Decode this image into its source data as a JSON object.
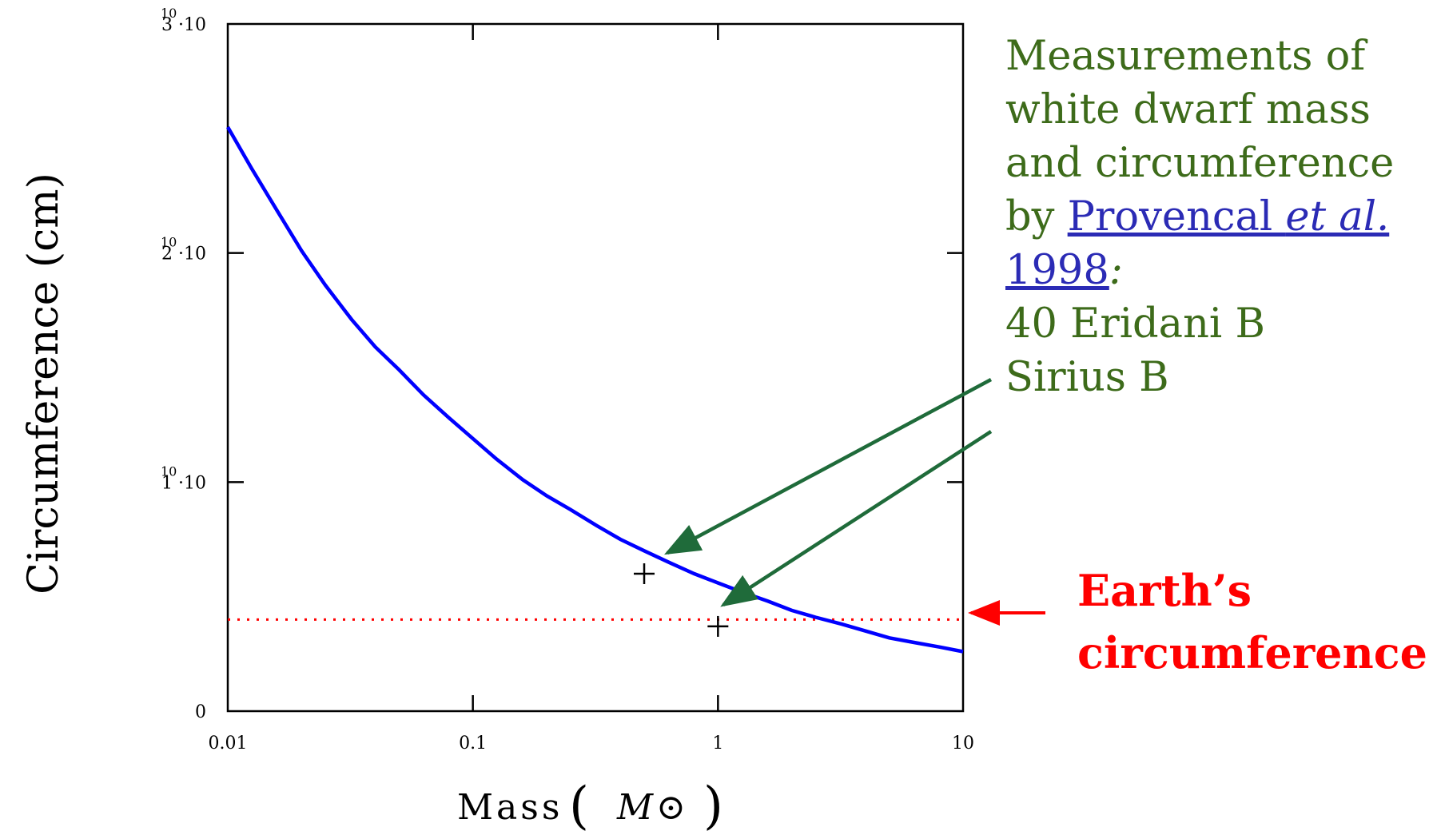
{
  "chart_data": {
    "type": "line",
    "xscale": "log",
    "xlim": [
      0.01,
      10
    ],
    "ylim": [
      0,
      30000000000
    ],
    "x_ticks": [
      {
        "value": 0.01,
        "label": "0.01"
      },
      {
        "value": 0.1,
        "label": "0.1"
      },
      {
        "value": 1,
        "label": "1"
      },
      {
        "value": 10,
        "label": "10"
      }
    ],
    "y_ticks": [
      {
        "value": 0,
        "mantissa": "0",
        "exponent": ""
      },
      {
        "value": 10000000000,
        "mantissa": "1 ·10",
        "exponent": "10"
      },
      {
        "value": 20000000000,
        "mantissa": "2 ·10",
        "exponent": "10"
      },
      {
        "value": 30000000000,
        "mantissa": "3 ·10",
        "exponent": "10"
      }
    ],
    "ylabel": "Circumference (cm)",
    "xlabel": {
      "word": "Mass",
      "unit": "M⊙"
    },
    "series": [
      {
        "x": [
          0.01,
          0.0125,
          0.016,
          0.02,
          0.025,
          0.032,
          0.04,
          0.05,
          0.063,
          0.08,
          0.1,
          0.125,
          0.16,
          0.2,
          0.25,
          0.32,
          0.4,
          0.5,
          0.63,
          0.8,
          1.0,
          1.25,
          1.6,
          2.0,
          2.5,
          3.2,
          4.0,
          5.0,
          6.3,
          8.0,
          10.0
        ],
        "y": [
          25500000000,
          23700000000,
          21800000000,
          20100000000,
          18600000000,
          17100000000,
          15900000000,
          14900000000,
          13800000000,
          12800000000,
          11900000000,
          11000000000,
          10100000000,
          9400000000,
          8800000000,
          8100000000,
          7500000000,
          7000000000,
          6500000000,
          6000000000,
          5600000000,
          5200000000,
          4800000000,
          4400000000,
          4100000000,
          3800000000,
          3500000000,
          3200000000,
          3000000000,
          2800000000,
          2600000000
        ],
        "color": "#0000ff"
      }
    ],
    "points": [
      {
        "x": 0.5,
        "y": 6000000000,
        "marker": "+",
        "color": "#000000"
      },
      {
        "x": 1.0,
        "y": 3700000000,
        "marker": "+",
        "color": "#000000"
      }
    ],
    "reference_line": {
      "y": 4000000000,
      "style": "dotted",
      "color": "#ff0000"
    },
    "annotations": {
      "heading_lines": [
        "Measurements of",
        "white dwarf mass",
        "and circumference"
      ],
      "by_text": "by ",
      "citation_author": "Provencal ",
      "citation_etal": "et al.",
      "citation_year": "1998",
      "colon": ":",
      "star_labels": [
        "40 Eridani B",
        "Sirius B"
      ],
      "earth_lines": [
        "Earth’s",
        "circumference"
      ],
      "text_color": "#3d6b1a",
      "link_color": "#2b2bb5",
      "arrow_color": "#1f6b3a",
      "earth_color": "#ff0000"
    }
  }
}
